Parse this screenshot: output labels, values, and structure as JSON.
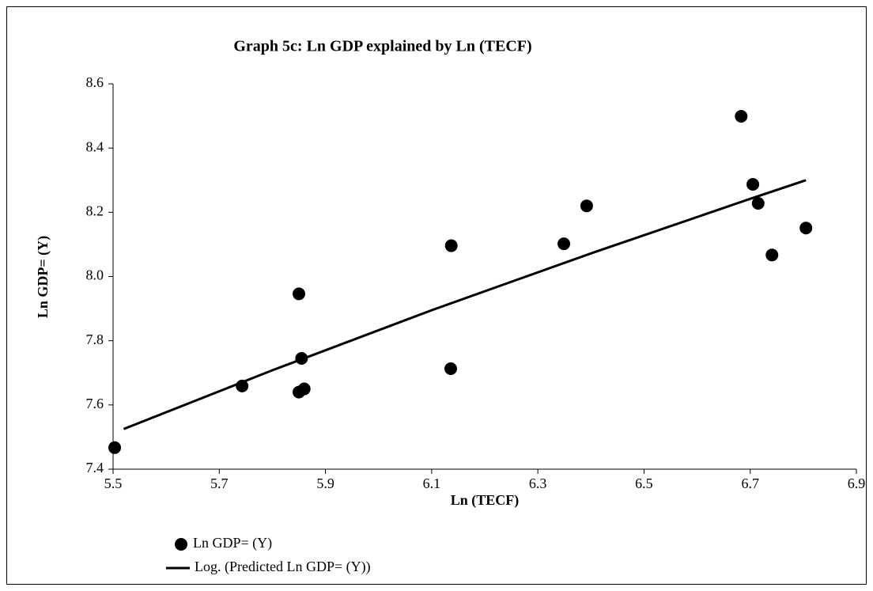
{
  "chart_data": {
    "type": "scatter",
    "title": "Graph 5c: Ln GDP explained by Ln (TECF)",
    "x_label": "Ln (TECF)",
    "y_label": "Ln GDP= (Y)",
    "xlim": [
      5.5,
      6.9
    ],
    "xticks": [
      5.5,
      5.7,
      5.9,
      6.1,
      6.3,
      6.5,
      6.7,
      6.9
    ],
    "ylim": [
      7.4,
      8.6
    ],
    "yticks": [
      {
        "value": 7.4,
        "label": "7.4"
      },
      {
        "value": 7.6,
        "label": "7.6"
      },
      {
        "value": 7.8,
        "label": "7.8"
      },
      {
        "value": 8.0,
        "label": "8.0"
      },
      {
        "value": 8.2,
        "label": "8.2"
      },
      {
        "value": 8.4,
        "label": "8.4"
      },
      {
        "value": 8.6,
        "label": "8.6"
      }
    ],
    "grid": false,
    "series": [
      {
        "name": "Ln GDP= (Y)",
        "type": "scatter",
        "color": "#000000",
        "x": [
          5.503,
          5.743,
          5.85,
          5.86,
          5.85,
          5.855,
          6.137,
          6.136,
          6.349,
          6.392,
          6.683,
          6.705,
          6.715,
          6.741,
          6.805
        ],
        "values": [
          7.467,
          7.659,
          7.64,
          7.65,
          7.946,
          7.745,
          8.096,
          7.713,
          8.102,
          8.22,
          8.499,
          8.287,
          8.228,
          8.067,
          8.151
        ]
      },
      {
        "name": "Log. (Predicted Ln GDP= (Y))",
        "type": "line",
        "color": "#000000",
        "x": [
          5.52,
          5.8,
          6.1,
          6.4,
          6.7,
          6.805
        ],
        "values": [
          7.525,
          7.708,
          7.895,
          8.072,
          8.242,
          8.3
        ]
      }
    ]
  }
}
